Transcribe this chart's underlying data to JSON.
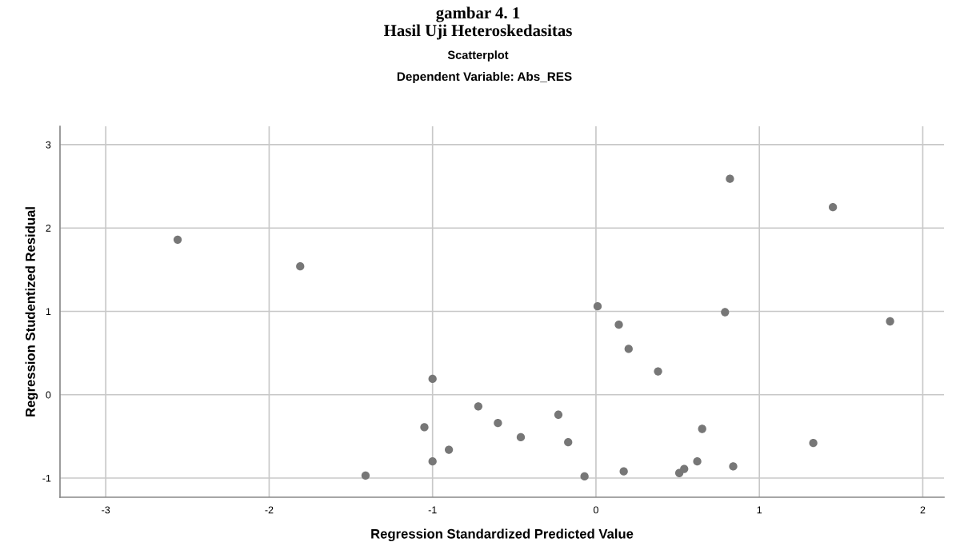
{
  "chart_data": {
    "type": "scatter",
    "title": "gambar 4. 1\nHasil Uji Heteroskedasitas",
    "subtitle": "Scatterplot\nDependent Variable: Abs_RES",
    "xlabel": "Regression Standardized Predicted Value",
    "ylabel": "Regression Studentized Residual",
    "x": [
      -2.56,
      -1.81,
      -1.0,
      -0.72,
      -1.05,
      -0.9,
      -1.0,
      -1.41,
      0.82,
      1.45,
      0.01,
      0.79,
      1.8,
      0.14,
      0.2,
      0.38,
      -0.6,
      -0.23,
      -0.46,
      -0.17,
      0.65,
      1.33,
      -0.07,
      0.17,
      0.51,
      0.54,
      0.62,
      0.84
    ],
    "values": [
      1.86,
      1.54,
      0.19,
      -0.14,
      -0.39,
      -0.66,
      -0.8,
      -0.97,
      2.59,
      2.25,
      1.06,
      0.99,
      0.88,
      0.84,
      0.55,
      0.28,
      -0.34,
      -0.24,
      -0.51,
      -0.57,
      -0.41,
      -0.58,
      -0.98,
      -0.92,
      -0.94,
      -0.89,
      -0.8,
      -0.86
    ],
    "color": "#777777",
    "marker": "circle",
    "grid": true,
    "legend": false,
    "xlim": [
      -3.28,
      2.13
    ],
    "ylim": [
      -1.23,
      3.22
    ],
    "xticks": [
      -3,
      -2,
      -1,
      0,
      1,
      2
    ],
    "yticks": [
      -1,
      0,
      1,
      2,
      3
    ]
  }
}
